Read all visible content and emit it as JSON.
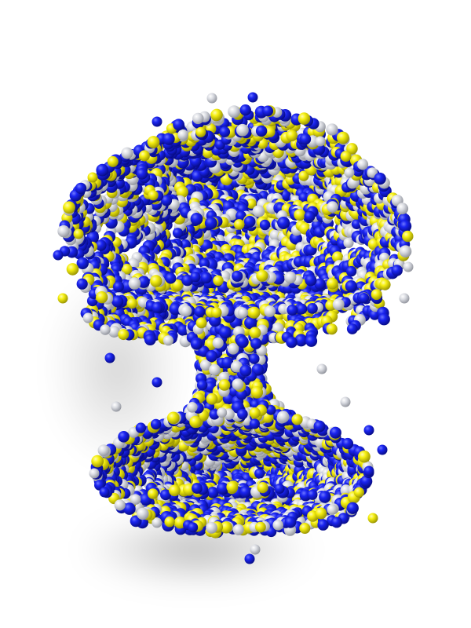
{
  "image": {
    "subject": "sphere-cluster",
    "background_color": "#ffffff",
    "colors": {
      "blue": "#0a14e6",
      "yellow": "#f5f00f",
      "white": "#d6d8de"
    },
    "color_mix": {
      "blue": 0.5,
      "yellow": 0.25,
      "white": 0.25
    }
  }
}
